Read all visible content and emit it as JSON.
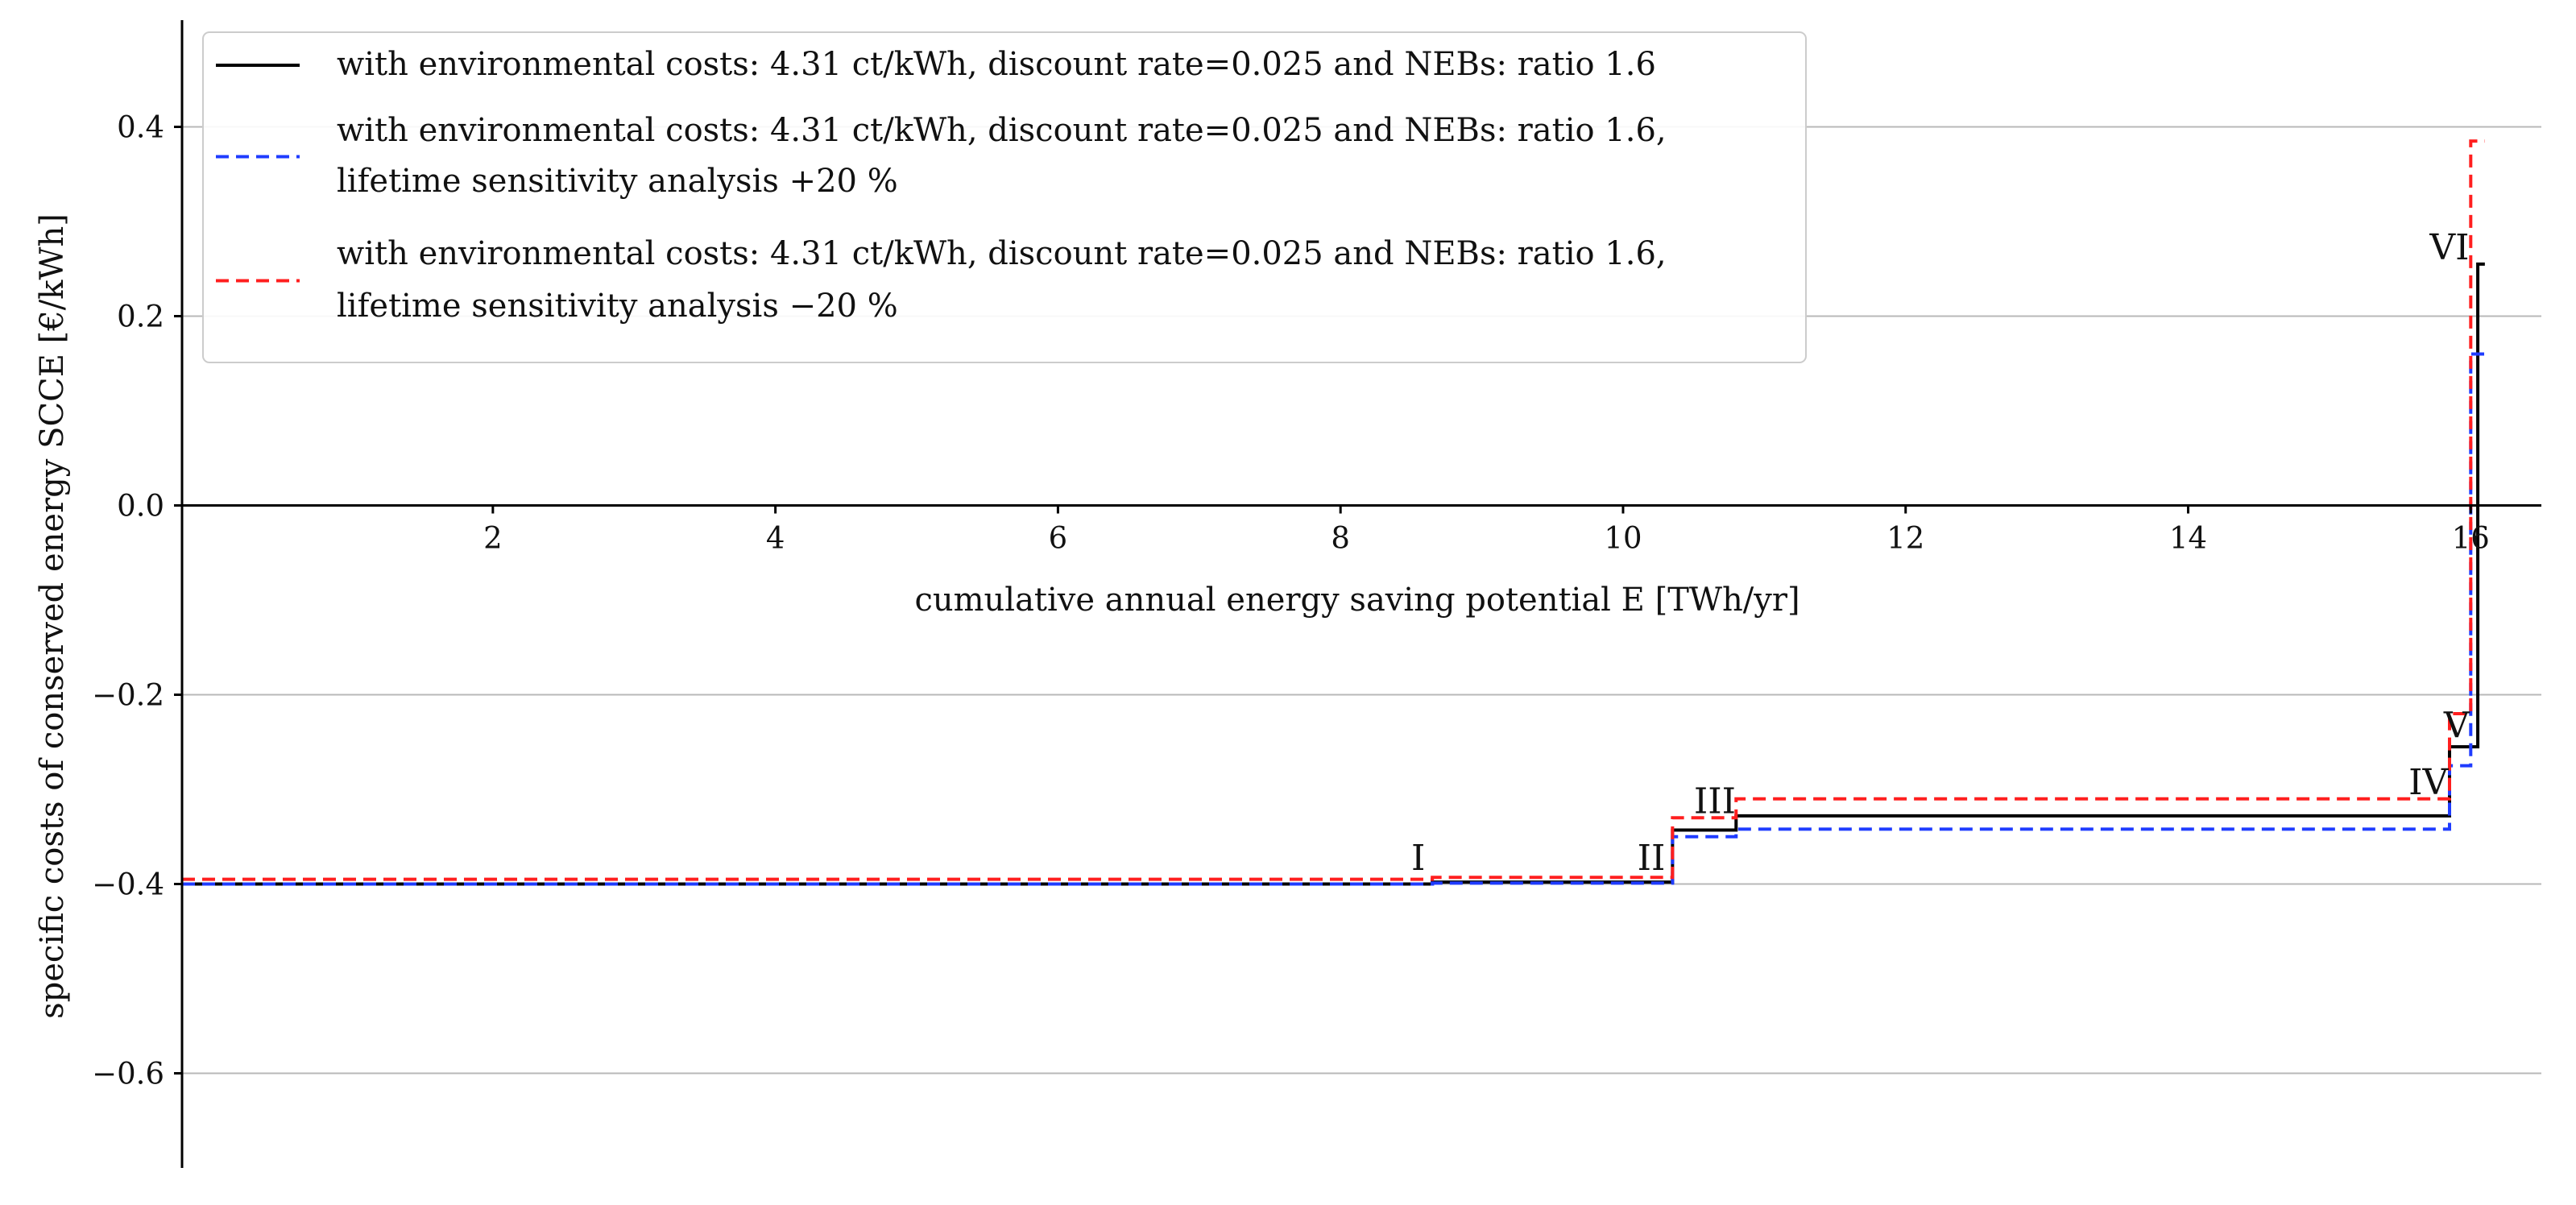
{
  "chart_data": {
    "type": "line",
    "step": true,
    "title": "",
    "xlabel": "cumulative annual energy saving potential E [TWh/yr]",
    "ylabel": "specific costs of conserved energy SCCE [€/kWh]",
    "xlim": [
      -0.2,
      16.5
    ],
    "ylim": [
      -0.7,
      0.5
    ],
    "xticks": [
      2,
      4,
      6,
      8,
      10,
      12,
      14,
      16
    ],
    "xtick_labels": [
      "2",
      "4",
      "6",
      "8",
      "10",
      "12",
      "14",
      "16"
    ],
    "yticks": [
      0.4,
      0.2,
      0.0,
      -0.2,
      -0.4,
      -0.6
    ],
    "ytick_labels": [
      "0.4",
      "0.2",
      "0.0",
      "−0.2",
      "−0.4",
      "−0.6"
    ],
    "grid": "horizontal",
    "legend_position": "top-left",
    "series": [
      {
        "name": "with environmental costs: 4.31 ct/kWh, discount rate=0.025 and NEBs: ratio 1.6",
        "legend_lines": [
          "with environmental costs: 4.31 ct/kWh, discount rate=0.025 and NEBs: ratio 1.6"
        ],
        "color": "#000000",
        "style": "solid",
        "x": [
          -0.2,
          8.65,
          10.35,
          10.8,
          15.85,
          16.05,
          16.1
        ],
        "y": [
          -0.4,
          -0.398,
          -0.343,
          -0.328,
          -0.255,
          0.255,
          0.255
        ]
      },
      {
        "name": "with environmental costs: 4.31 ct/kWh, discount rate=0.025 and NEBs: ratio 1.6, lifetime sensitivity analysis +20 %",
        "legend_lines": [
          "with environmental costs: 4.31 ct/kWh, discount rate=0.025 and NEBs: ratio 1.6,",
          "lifetime sensitivity analysis +20 %"
        ],
        "color": "#1f3cff",
        "style": "dashed",
        "x": [
          -0.2,
          8.65,
          10.35,
          10.8,
          15.85,
          16.0,
          16.1
        ],
        "y": [
          -0.4,
          -0.399,
          -0.35,
          -0.342,
          -0.275,
          0.16,
          0.16
        ]
      },
      {
        "name": "with environmental costs: 4.31 ct/kWh, discount rate=0.025 and NEBs: ratio 1.6, lifetime sensitivity analysis −20 %",
        "legend_lines": [
          "with environmental costs: 4.31 ct/kWh, discount rate=0.025 and NEBs: ratio 1.6,",
          "lifetime sensitivity analysis −20 %"
        ],
        "color": "#ff1f1f",
        "style": "dashed",
        "x": [
          -0.2,
          8.65,
          10.35,
          10.8,
          15.85,
          16.0,
          16.1
        ],
        "y": [
          -0.395,
          -0.393,
          -0.33,
          -0.31,
          -0.22,
          0.385,
          0.385
        ]
      }
    ],
    "annotations": [
      {
        "text": "I",
        "x": 8.55,
        "y": -0.385
      },
      {
        "text": "II",
        "x": 10.2,
        "y": -0.385
      },
      {
        "text": "III",
        "x": 10.65,
        "y": -0.325
      },
      {
        "text": "IV",
        "x": 15.7,
        "y": -0.305
      },
      {
        "text": "V",
        "x": 15.9,
        "y": -0.245
      },
      {
        "text": "VI",
        "x": 15.85,
        "y": 0.26
      }
    ]
  }
}
